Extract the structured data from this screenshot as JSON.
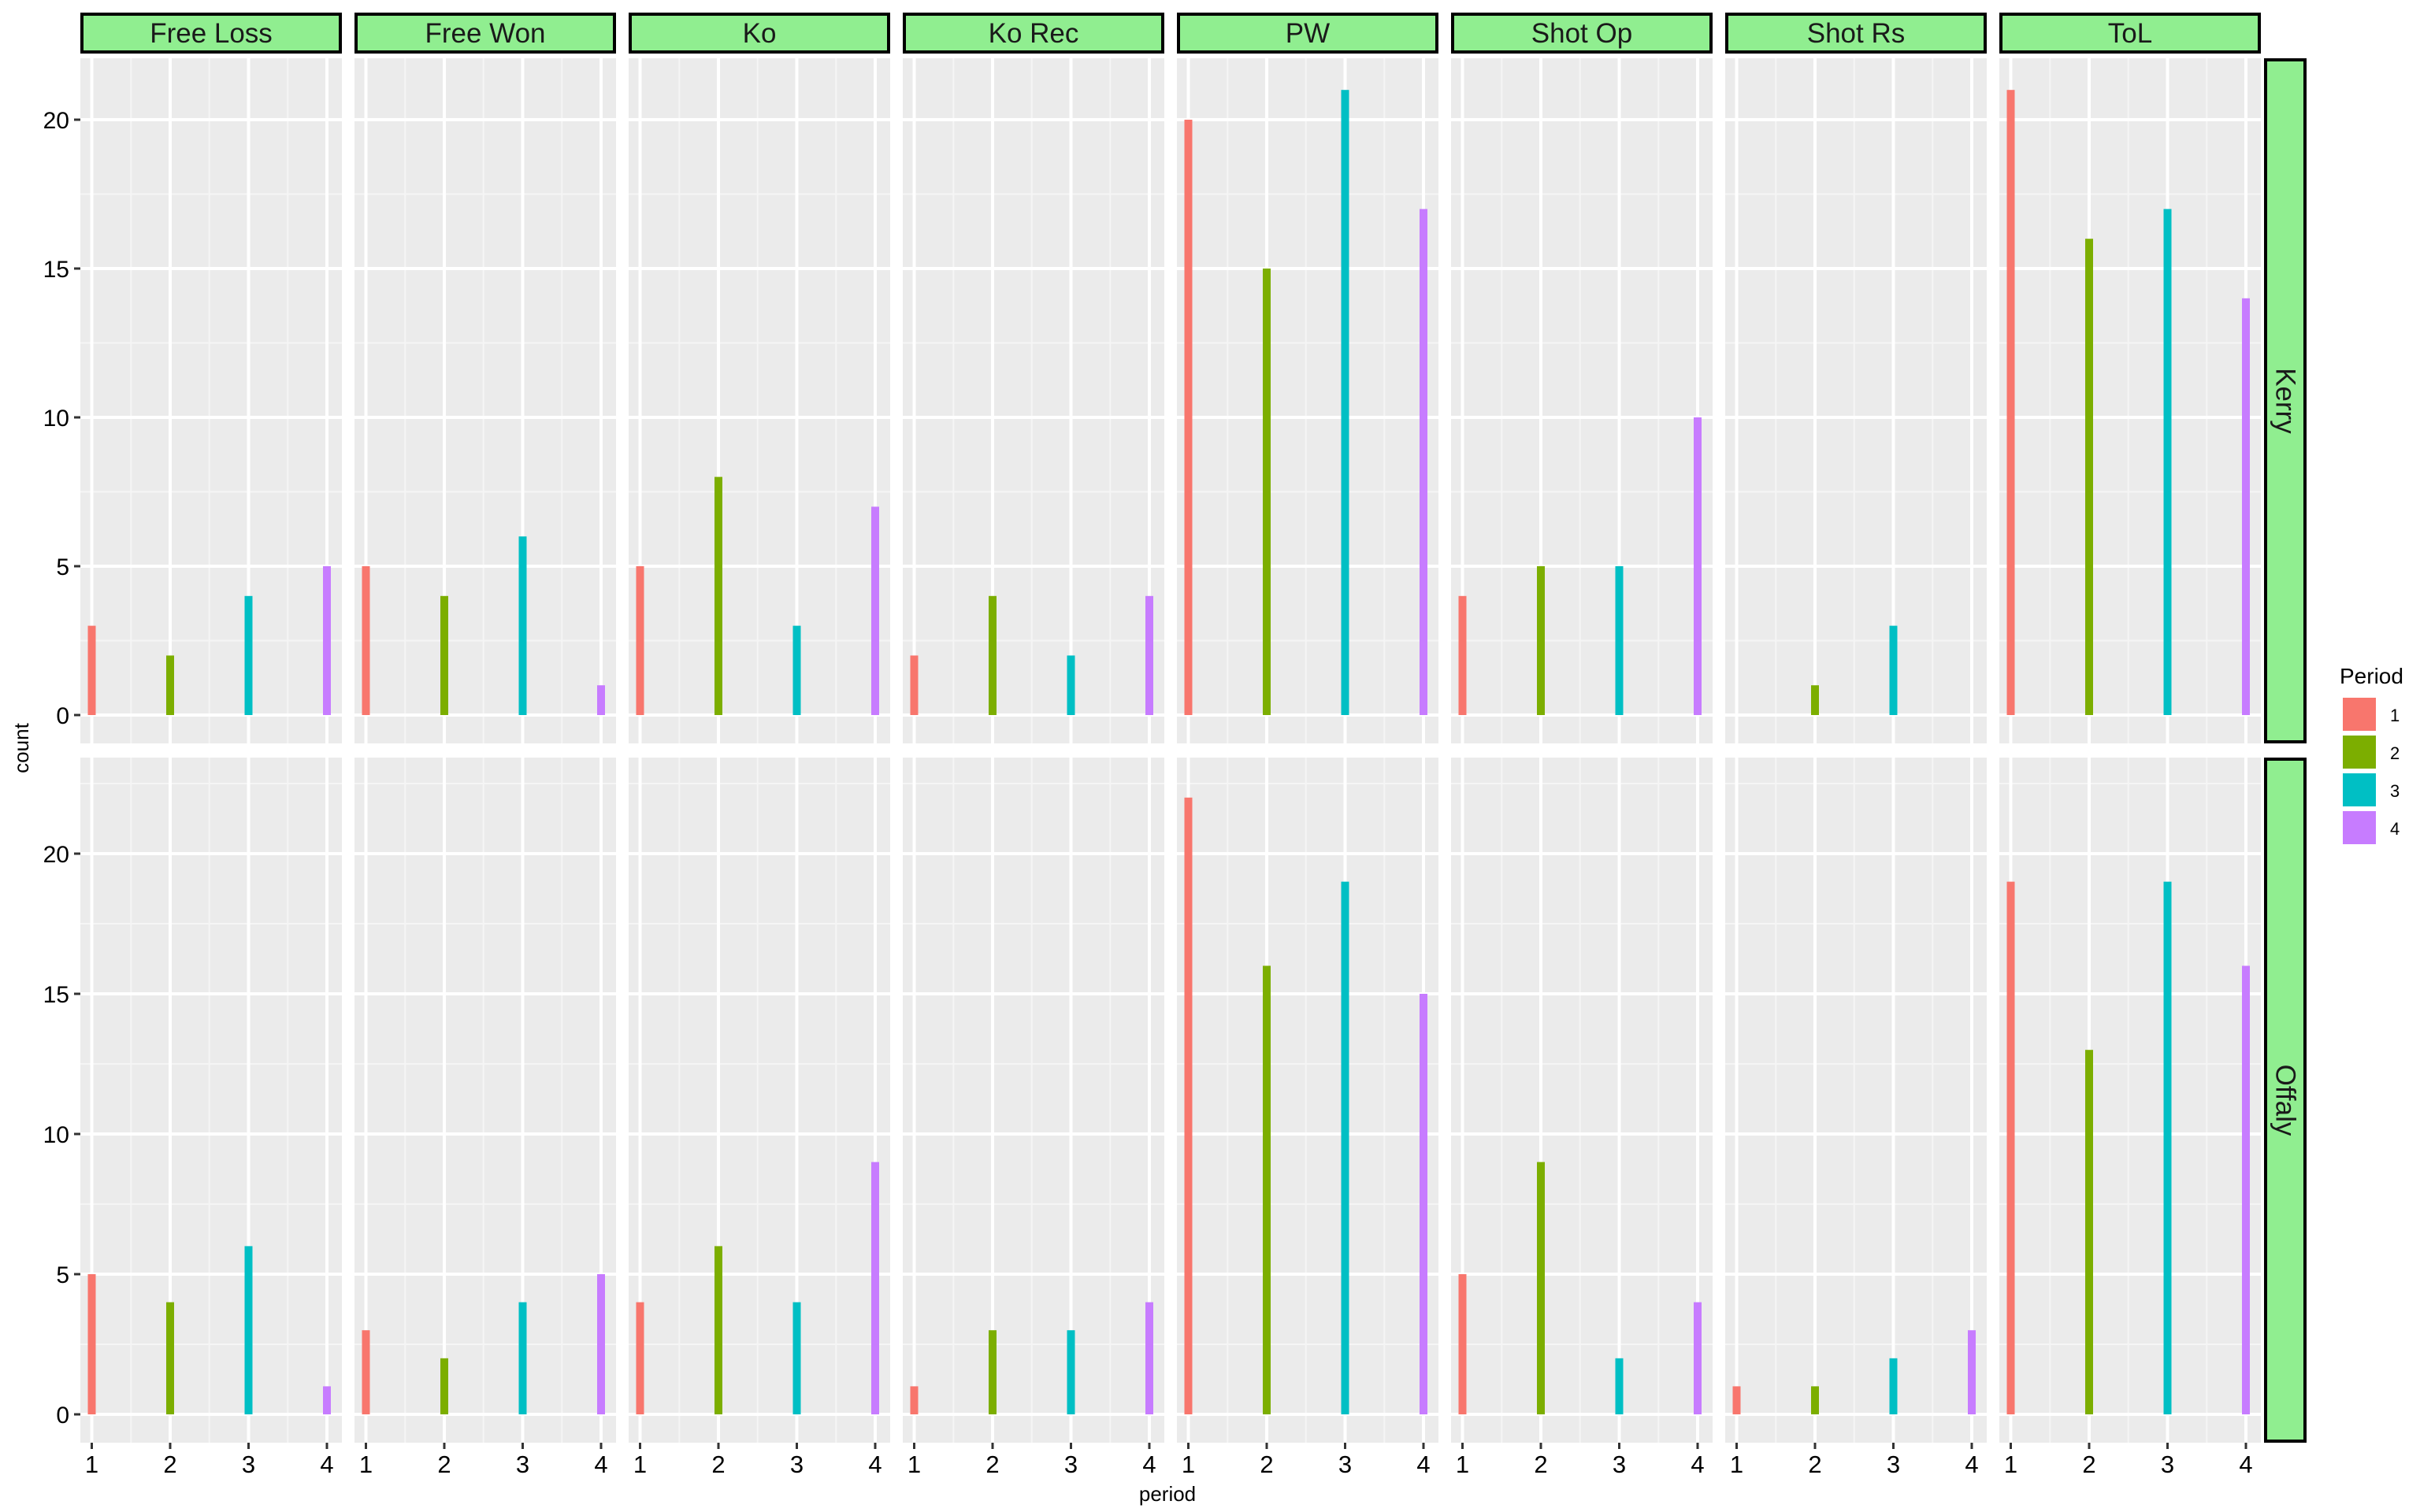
{
  "chart_data": {
    "type": "bar",
    "xlabel": "period",
    "ylabel": "count",
    "x": [
      "1",
      "2",
      "3",
      "4"
    ],
    "columns": [
      "Free Loss",
      "Free Won",
      "Ko",
      "Ko Rec",
      "PW",
      "Shot Op",
      "Shot Rs",
      "ToL"
    ],
    "rows": [
      "Kerry",
      "Offaly"
    ],
    "panel_ylims": [
      [
        0,
        21
      ],
      [
        0,
        22
      ]
    ],
    "y_ticks": [
      "0",
      "5",
      "10",
      "15",
      "20"
    ],
    "grid": true,
    "legend": {
      "title": "Period",
      "position": "right",
      "items": [
        {
          "label": "1",
          "color": "#F8766D"
        },
        {
          "label": "2",
          "color": "#7CAE00"
        },
        {
          "label": "3",
          "color": "#00BFC4"
        },
        {
          "label": "4",
          "color": "#C77CFF"
        }
      ]
    },
    "strip_fill": "#90EE90",
    "panels": {
      "Kerry": {
        "Free Loss": [
          3,
          2,
          4,
          5
        ],
        "Free Won": [
          5,
          4,
          6,
          1
        ],
        "Ko": [
          5,
          8,
          3,
          7
        ],
        "Ko Rec": [
          2,
          4,
          2,
          4
        ],
        "PW": [
          20,
          15,
          21,
          17
        ],
        "Shot Op": [
          4,
          5,
          5,
          10
        ],
        "Shot Rs": [
          0,
          1,
          3,
          0
        ],
        "ToL": [
          21,
          16,
          17,
          14
        ]
      },
      "Offaly": {
        "Free Loss": [
          5,
          4,
          6,
          1
        ],
        "Free Won": [
          3,
          2,
          4,
          5
        ],
        "Ko": [
          4,
          6,
          4,
          9
        ],
        "Ko Rec": [
          1,
          3,
          3,
          4
        ],
        "PW": [
          22,
          16,
          19,
          15
        ],
        "Shot Op": [
          5,
          9,
          2,
          4
        ],
        "Shot Rs": [
          1,
          1,
          2,
          3
        ],
        "ToL": [
          19,
          13,
          19,
          16
        ]
      }
    }
  }
}
